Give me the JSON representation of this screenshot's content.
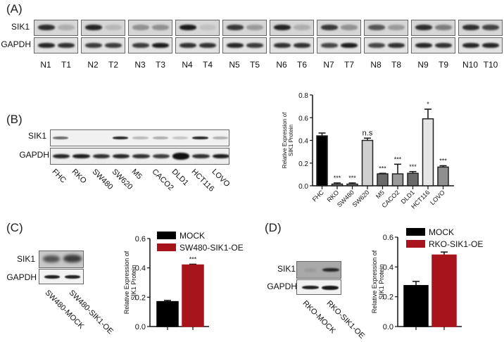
{
  "panel_a": {
    "label": "(A)",
    "row_labels": [
      "SIK1",
      "GAPDH"
    ],
    "pairs": [
      {
        "n": "N1",
        "t": "T1",
        "sik1": [
          0.85,
          0.2
        ],
        "gapdh": [
          0.9,
          0.85
        ]
      },
      {
        "n": "N2",
        "t": "T2",
        "sik1": [
          0.9,
          0.15
        ],
        "gapdh": [
          0.8,
          0.8
        ]
      },
      {
        "n": "N3",
        "t": "T3",
        "sik1": [
          0.35,
          0.35
        ],
        "gapdh": [
          0.8,
          0.95
        ]
      },
      {
        "n": "N4",
        "t": "T4",
        "sik1": [
          0.95,
          0.1
        ],
        "gapdh": [
          0.85,
          0.85
        ]
      },
      {
        "n": "N5",
        "t": "T5",
        "sik1": [
          0.8,
          0.3
        ],
        "gapdh": [
          0.9,
          0.8
        ]
      },
      {
        "n": "N6",
        "t": "T6",
        "sik1": [
          0.9,
          0.2
        ],
        "gapdh": [
          0.85,
          0.85
        ]
      },
      {
        "n": "N7",
        "t": "T7",
        "sik1": [
          0.8,
          0.35
        ],
        "gapdh": [
          0.75,
          0.95
        ]
      },
      {
        "n": "N8",
        "t": "T8",
        "sik1": [
          0.65,
          0.3
        ],
        "gapdh": [
          0.75,
          0.85
        ]
      },
      {
        "n": "N9",
        "t": "T9",
        "sik1": [
          0.85,
          0.45
        ],
        "gapdh": [
          0.9,
          0.85
        ]
      },
      {
        "n": "N10",
        "t": "T10",
        "sik1": [
          0.85,
          0.75
        ],
        "gapdh": [
          0.9,
          0.9
        ]
      }
    ]
  },
  "panel_b": {
    "label": "(B)",
    "row_labels": [
      "SIK1",
      "GAPDH"
    ],
    "lanes": [
      "FHC",
      "RKO",
      "SW480",
      "SW620",
      "M5",
      "CACO2",
      "DLD1",
      "HCT116",
      "LOVO"
    ],
    "sik1_intensity": [
      0.6,
      0.0,
      0.0,
      0.9,
      0.25,
      0.3,
      0.2,
      0.9,
      0.3
    ],
    "gapdh_intensity": [
      0.9,
      0.95,
      0.85,
      0.9,
      0.85,
      0.8,
      1.0,
      0.85,
      0.95
    ]
  },
  "panel_c": {
    "label": "(C)",
    "row_labels": [
      "SIK1",
      "GAPDH"
    ],
    "lanes": [
      "SW480-MOCK",
      "SW480-SIK1-OE"
    ]
  },
  "panel_d": {
    "label": "(D)",
    "row_labels": [
      "SIK1",
      "GAPDH"
    ],
    "lanes": [
      "RKO-MOCK",
      "RKO-SIK1-OE"
    ]
  },
  "chart_data": [
    {
      "id": "B",
      "type": "bar",
      "title": "",
      "xlabel": "",
      "ylabel": "Relative Expression of SIK1 Protein",
      "ylabel_lines": [
        "Relative Expression of",
        "SIK1 Protein"
      ],
      "categories": [
        "FHC",
        "RKO",
        "SW480",
        "SW620",
        "M5",
        "CACO2",
        "DLD1",
        "HCT116",
        "LOVO"
      ],
      "values": [
        0.44,
        0.015,
        0.015,
        0.4,
        0.105,
        0.105,
        0.11,
        0.59,
        0.165
      ],
      "errors": [
        0.025,
        0.01,
        0.01,
        0.02,
        0.005,
        0.085,
        0.015,
        0.085,
        0.012
      ],
      "annotations": [
        "",
        "***",
        "***",
        "n.s",
        "***",
        "***",
        "***",
        "*",
        "***"
      ],
      "colors": [
        "#000000",
        "#8a8a8a",
        "#8a8a8a",
        "#cfcfcf",
        "#6a6a6a",
        "#9a9a9a",
        "#6a6a6a",
        "#e6e6e6",
        "#8f8f8f"
      ],
      "ylim": [
        0,
        0.8
      ],
      "yticks": [
        "0.0",
        "0.2",
        "0.4",
        "0.6",
        "0.8"
      ],
      "grid": false
    },
    {
      "id": "C",
      "type": "bar",
      "ylabel": "Relative Expression of SIK1 Protein",
      "ylabel_lines": [
        "Relative Expression of",
        "SIK1 Protein"
      ],
      "categories": [
        "MOCK",
        "SW480-SIK1-OE"
      ],
      "values": [
        0.17,
        0.42
      ],
      "errors": [
        0.008,
        0.005
      ],
      "annotations": [
        "",
        "***"
      ],
      "legend": [
        {
          "label": "MOCK",
          "color": "#000000"
        },
        {
          "label": "SW480-SIK1-OE",
          "color": "#a8141c"
        }
      ],
      "legend_position": "top-right",
      "ylim": [
        0,
        0.6
      ],
      "yticks": [
        "0.0",
        "0.2",
        "0.4",
        "0.6"
      ],
      "grid": false
    },
    {
      "id": "D",
      "type": "bar",
      "ylabel": "Relative Expression of SIK1 Protein",
      "ylabel_lines": [
        "Relative Expression of",
        "SIK1 Protein"
      ],
      "categories": [
        "MOCK",
        "RKO-SIK1-OE"
      ],
      "values": [
        0.275,
        0.48
      ],
      "errors": [
        0.028,
        0.02
      ],
      "annotations": [
        "",
        ""
      ],
      "legend": [
        {
          "label": "MOCK",
          "color": "#000000"
        },
        {
          "label": "RKO-SIK1-OE",
          "color": "#a8141c"
        }
      ],
      "legend_position": "top-right",
      "ylim": [
        0,
        0.6
      ],
      "yticks": [
        "0.0",
        "0.2",
        "0.4",
        "0.6"
      ],
      "grid": false
    }
  ]
}
